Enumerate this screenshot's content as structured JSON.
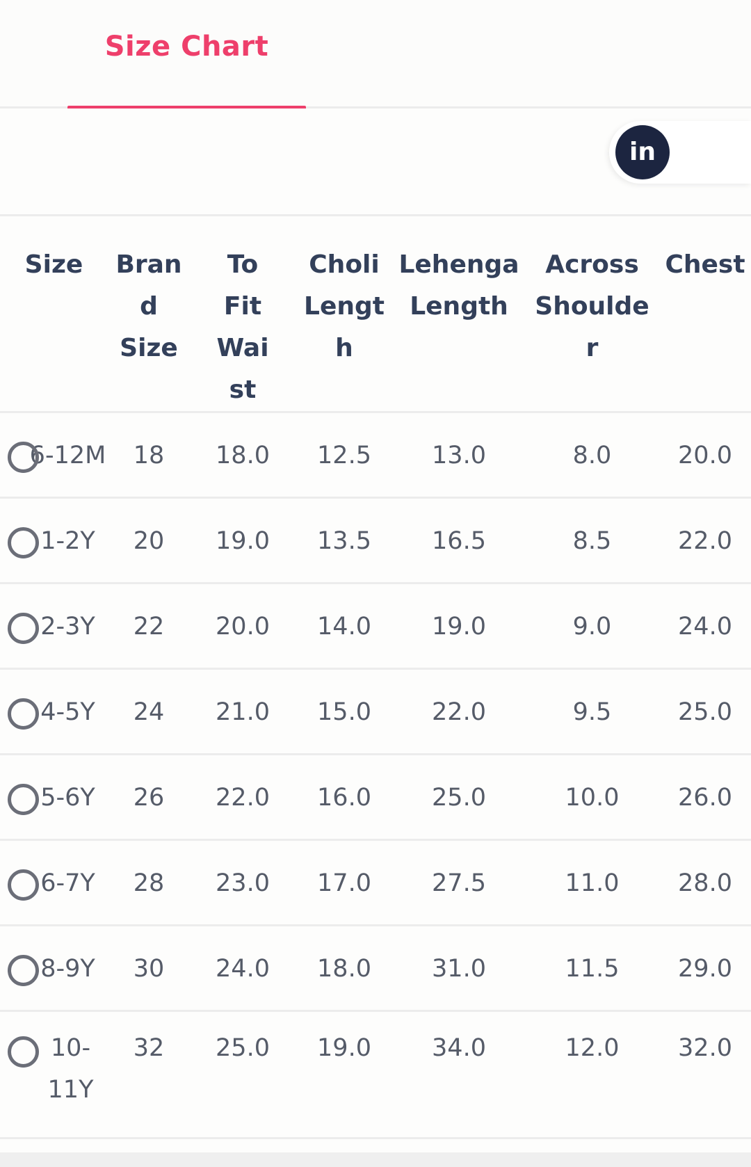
{
  "tabs": [
    {
      "label": "Size Chart",
      "active": true
    }
  ],
  "share": {
    "icon": "linkedin-icon",
    "label": "in"
  },
  "colors": {
    "accent": "#ee3f6b",
    "linkedin_bg": "#1c2540",
    "header_text": "#33405a",
    "cell_text": "#555b68",
    "divider": "#ececec"
  },
  "table": {
    "headers": [
      "Size",
      "Brand Size",
      "To Fit Waist",
      "Choli Length",
      "Lehenga Length",
      "Across Shoulder",
      "Chest"
    ],
    "rows": [
      {
        "size": "6-12M",
        "brand_size": "18",
        "to_fit_waist": "18.0",
        "choli_length": "12.5",
        "lehenga_length": "13.0",
        "across_shoulder": "8.0",
        "chest": "20.0",
        "selected": false
      },
      {
        "size": "1-2Y",
        "brand_size": "20",
        "to_fit_waist": "19.0",
        "choli_length": "13.5",
        "lehenga_length": "16.5",
        "across_shoulder": "8.5",
        "chest": "22.0",
        "selected": false
      },
      {
        "size": "2-3Y",
        "brand_size": "22",
        "to_fit_waist": "20.0",
        "choli_length": "14.0",
        "lehenga_length": "19.0",
        "across_shoulder": "9.0",
        "chest": "24.0",
        "selected": false
      },
      {
        "size": "4-5Y",
        "brand_size": "24",
        "to_fit_waist": "21.0",
        "choli_length": "15.0",
        "lehenga_length": "22.0",
        "across_shoulder": "9.5",
        "chest": "25.0",
        "selected": false
      },
      {
        "size": "5-6Y",
        "brand_size": "26",
        "to_fit_waist": "22.0",
        "choli_length": "16.0",
        "lehenga_length": "25.0",
        "across_shoulder": "10.0",
        "chest": "26.0",
        "selected": false
      },
      {
        "size": "6-7Y",
        "brand_size": "28",
        "to_fit_waist": "23.0",
        "choli_length": "17.0",
        "lehenga_length": "27.5",
        "across_shoulder": "11.0",
        "chest": "28.0",
        "selected": false
      },
      {
        "size": "8-9Y",
        "brand_size": "30",
        "to_fit_waist": "24.0",
        "choli_length": "18.0",
        "lehenga_length": "31.0",
        "across_shoulder": "11.5",
        "chest": "29.0",
        "selected": false
      },
      {
        "size": "10-11Y",
        "brand_size": "32",
        "to_fit_waist": "25.0",
        "choli_length": "19.0",
        "lehenga_length": "34.0",
        "across_shoulder": "12.0",
        "chest": "32.0",
        "selected": false
      }
    ]
  }
}
